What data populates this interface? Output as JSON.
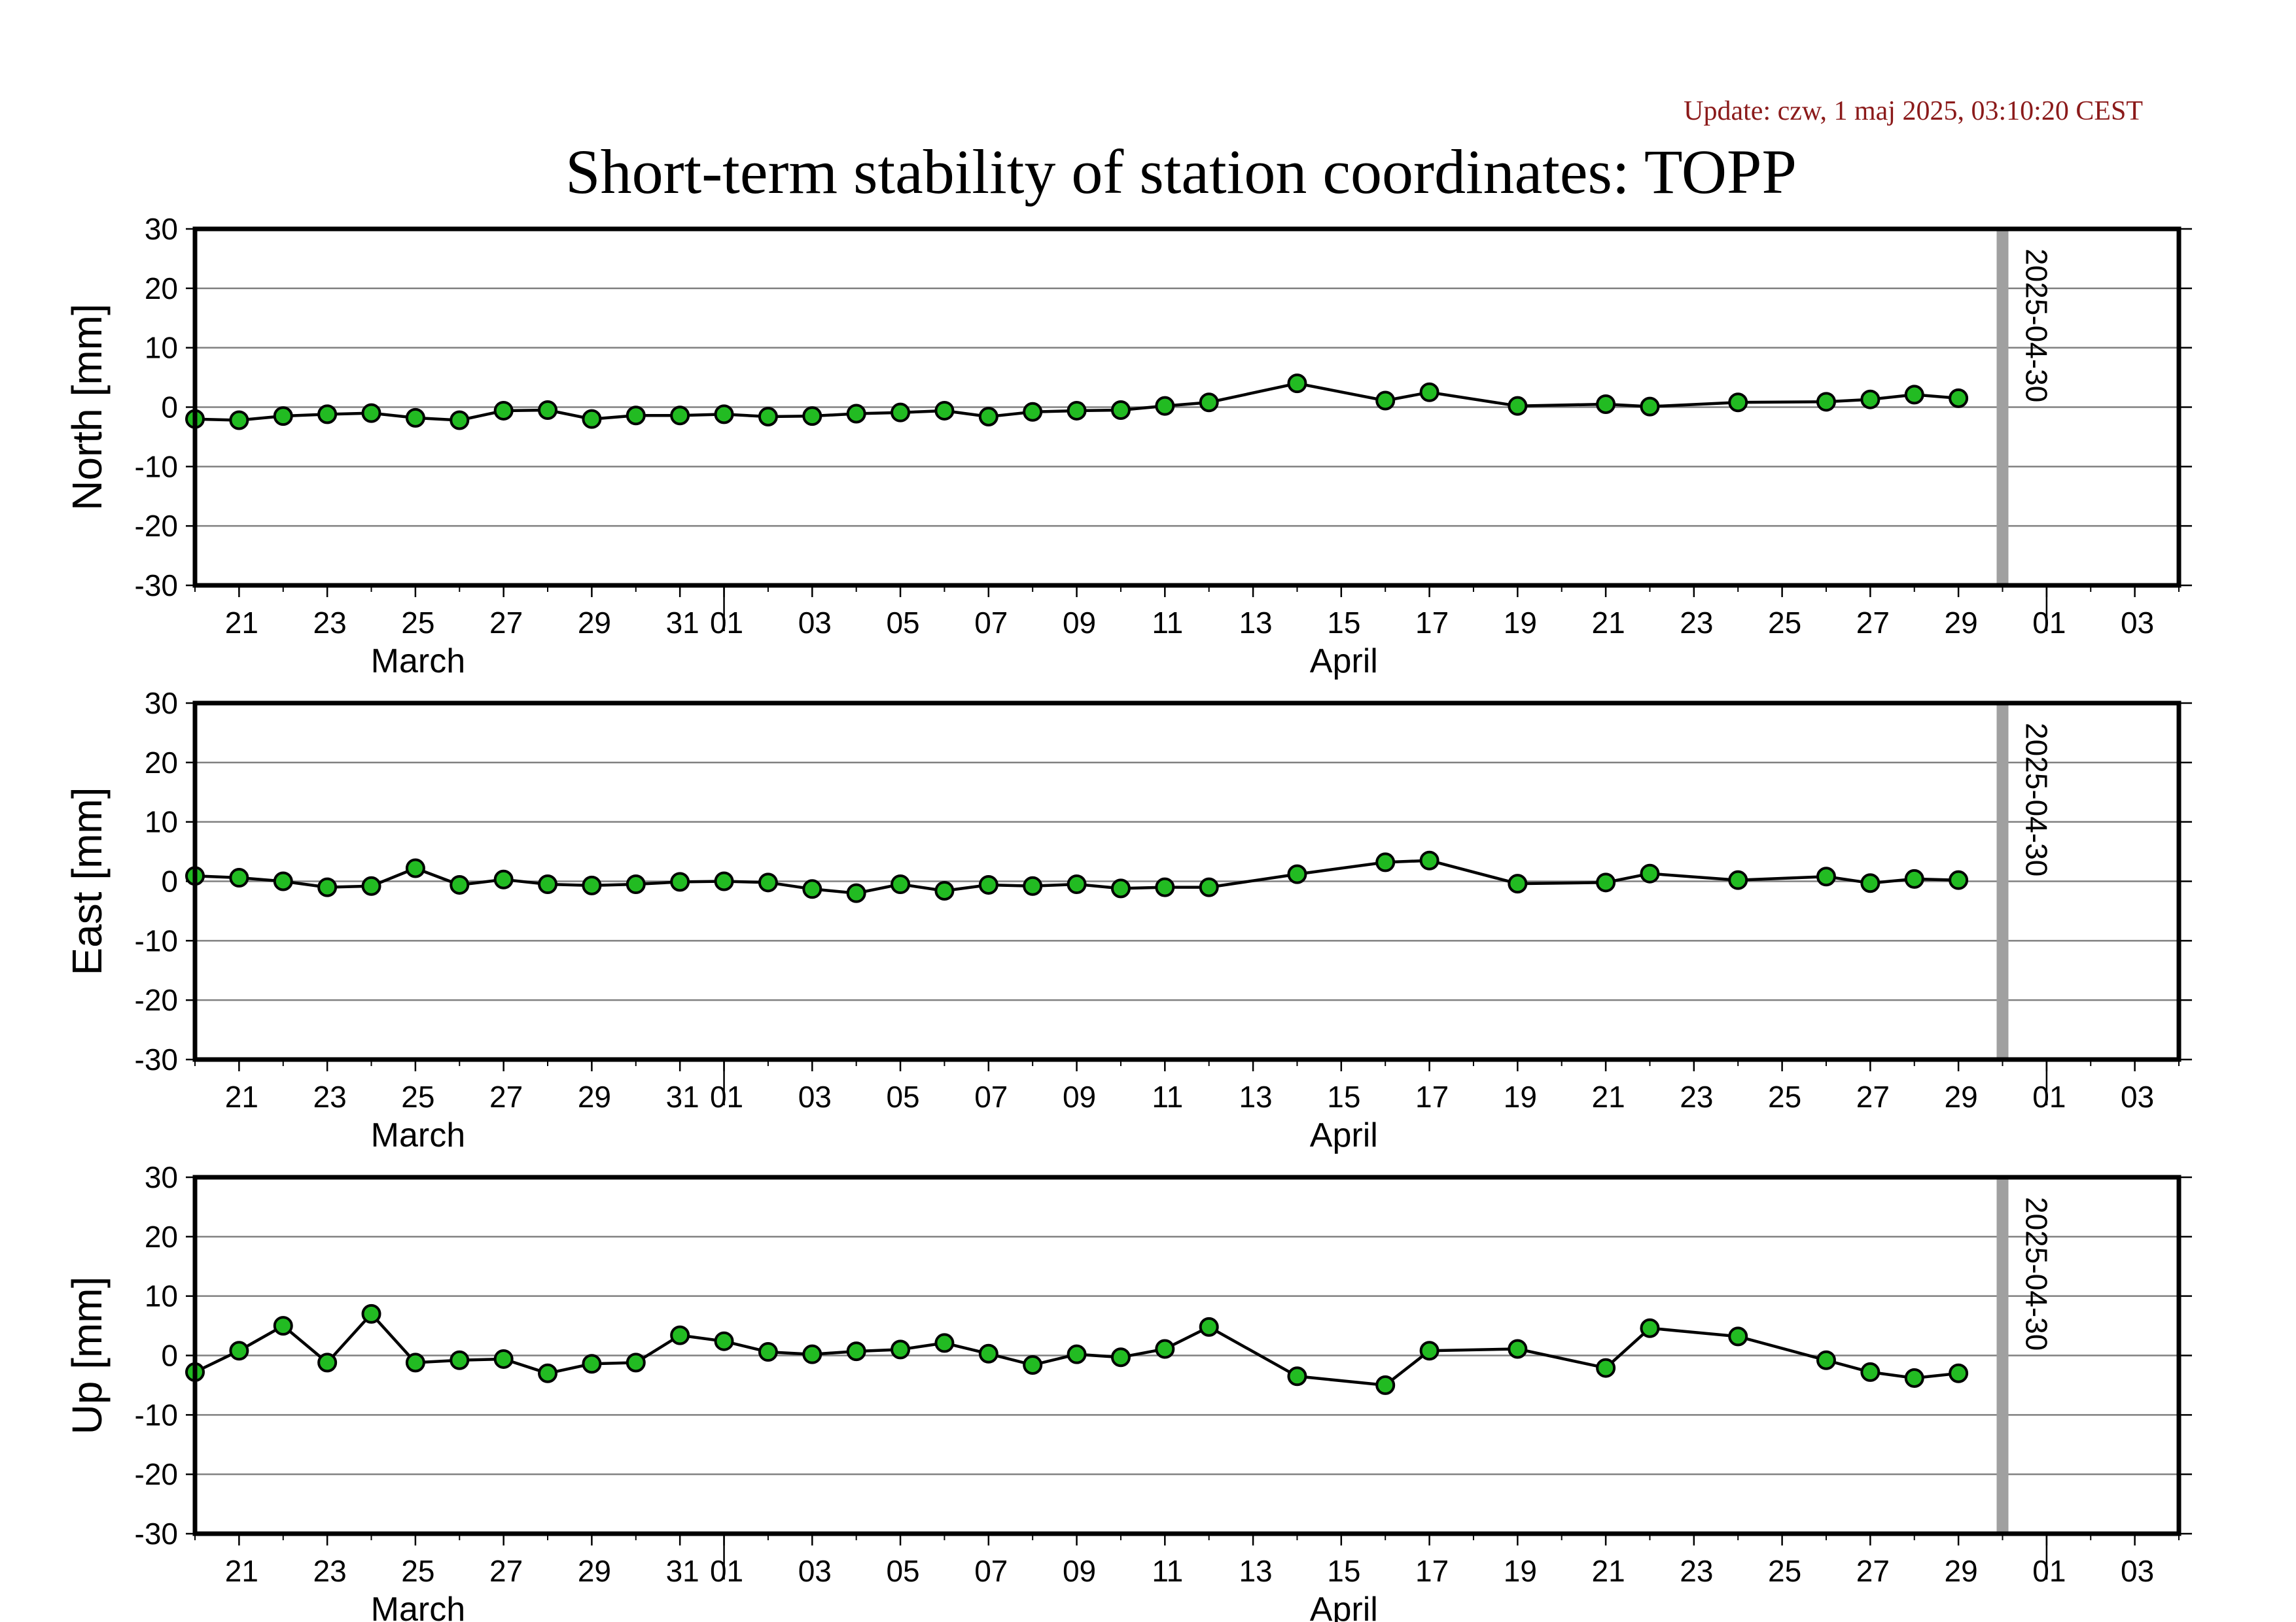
{
  "header": {
    "update": "Update: czw, 1 maj 2025, 03:10:20 CEST",
    "title": "Short-term stability of station coordinates: TOPP"
  },
  "colors": {
    "marker_fill": "#22bb22",
    "marker_stroke": "#000000",
    "line": "#000000",
    "grid": "#808080",
    "today_bar": "#a0a0a0",
    "update_text": "#8b1a1a"
  },
  "chart_data": [
    {
      "type": "line",
      "ylabel": "North [mm]",
      "ylim": [
        -30,
        30
      ],
      "yticks": [
        30,
        20,
        10,
        0,
        -10,
        -20,
        -30
      ],
      "xlim": [
        "2025-03-20",
        "2025-05-04"
      ],
      "xtick_labels": [
        {
          "date": "2025-03-21",
          "label": "21"
        },
        {
          "date": "2025-03-23",
          "label": "23"
        },
        {
          "date": "2025-03-25",
          "label": "25"
        },
        {
          "date": "2025-03-27",
          "label": "27"
        },
        {
          "date": "2025-03-29",
          "label": "29"
        },
        {
          "date": "2025-03-31",
          "label": "31"
        },
        {
          "date": "2025-04-01",
          "label": "01"
        },
        {
          "date": "2025-04-03",
          "label": "03"
        },
        {
          "date": "2025-04-05",
          "label": "05"
        },
        {
          "date": "2025-04-07",
          "label": "07"
        },
        {
          "date": "2025-04-09",
          "label": "09"
        },
        {
          "date": "2025-04-11",
          "label": "11"
        },
        {
          "date": "2025-04-13",
          "label": "13"
        },
        {
          "date": "2025-04-15",
          "label": "15"
        },
        {
          "date": "2025-04-17",
          "label": "17"
        },
        {
          "date": "2025-04-19",
          "label": "19"
        },
        {
          "date": "2025-04-21",
          "label": "21"
        },
        {
          "date": "2025-04-23",
          "label": "23"
        },
        {
          "date": "2025-04-25",
          "label": "25"
        },
        {
          "date": "2025-04-27",
          "label": "27"
        },
        {
          "date": "2025-04-29",
          "label": "29"
        },
        {
          "date": "2025-05-01",
          "label": "01"
        },
        {
          "date": "2025-05-03",
          "label": "03"
        }
      ],
      "month_labels": [
        {
          "date": "2025-03-25",
          "label": "March"
        },
        {
          "date": "2025-04-15",
          "label": "April"
        }
      ],
      "month_boundaries": [
        "2025-04-01",
        "2025-05-01"
      ],
      "marker": {
        "date": "2025-04-30",
        "label": "2025-04-30"
      },
      "grid": true,
      "points": [
        {
          "x": "2025-03-20",
          "y": -2.0
        },
        {
          "x": "2025-03-21",
          "y": -2.2
        },
        {
          "x": "2025-03-22",
          "y": -1.5
        },
        {
          "x": "2025-03-23",
          "y": -1.2
        },
        {
          "x": "2025-03-24",
          "y": -1.0
        },
        {
          "x": "2025-03-25",
          "y": -1.8
        },
        {
          "x": "2025-03-26",
          "y": -2.2
        },
        {
          "x": "2025-03-27",
          "y": -0.6
        },
        {
          "x": "2025-03-28",
          "y": -0.5
        },
        {
          "x": "2025-03-29",
          "y": -2.0
        },
        {
          "x": "2025-03-30",
          "y": -1.4
        },
        {
          "x": "2025-03-31",
          "y": -1.4
        },
        {
          "x": "2025-04-01",
          "y": -1.2
        },
        {
          "x": "2025-04-02",
          "y": -1.6
        },
        {
          "x": "2025-04-03",
          "y": -1.5
        },
        {
          "x": "2025-04-04",
          "y": -1.1
        },
        {
          "x": "2025-04-05",
          "y": -0.9
        },
        {
          "x": "2025-04-06",
          "y": -0.6
        },
        {
          "x": "2025-04-07",
          "y": -1.6
        },
        {
          "x": "2025-04-08",
          "y": -0.8
        },
        {
          "x": "2025-04-09",
          "y": -0.6
        },
        {
          "x": "2025-04-10",
          "y": -0.5
        },
        {
          "x": "2025-04-11",
          "y": 0.2
        },
        {
          "x": "2025-04-12",
          "y": 0.8
        },
        {
          "x": "2025-04-14",
          "y": 4.0
        },
        {
          "x": "2025-04-16",
          "y": 1.1
        },
        {
          "x": "2025-04-17",
          "y": 2.5
        },
        {
          "x": "2025-04-19",
          "y": 0.2
        },
        {
          "x": "2025-04-21",
          "y": 0.5
        },
        {
          "x": "2025-04-22",
          "y": 0.1
        },
        {
          "x": "2025-04-24",
          "y": 0.8
        },
        {
          "x": "2025-04-26",
          "y": 0.9
        },
        {
          "x": "2025-04-27",
          "y": 1.3
        },
        {
          "x": "2025-04-28",
          "y": 2.1
        },
        {
          "x": "2025-04-29",
          "y": 1.5
        }
      ]
    },
    {
      "type": "line",
      "ylabel": "East [mm]",
      "ylim": [
        -30,
        30
      ],
      "yticks": [
        30,
        20,
        10,
        0,
        -10,
        -20,
        -30
      ],
      "xlim": [
        "2025-03-20",
        "2025-05-04"
      ],
      "xtick_labels": [
        {
          "date": "2025-03-21",
          "label": "21"
        },
        {
          "date": "2025-03-23",
          "label": "23"
        },
        {
          "date": "2025-03-25",
          "label": "25"
        },
        {
          "date": "2025-03-27",
          "label": "27"
        },
        {
          "date": "2025-03-29",
          "label": "29"
        },
        {
          "date": "2025-03-31",
          "label": "31"
        },
        {
          "date": "2025-04-01",
          "label": "01"
        },
        {
          "date": "2025-04-03",
          "label": "03"
        },
        {
          "date": "2025-04-05",
          "label": "05"
        },
        {
          "date": "2025-04-07",
          "label": "07"
        },
        {
          "date": "2025-04-09",
          "label": "09"
        },
        {
          "date": "2025-04-11",
          "label": "11"
        },
        {
          "date": "2025-04-13",
          "label": "13"
        },
        {
          "date": "2025-04-15",
          "label": "15"
        },
        {
          "date": "2025-04-17",
          "label": "17"
        },
        {
          "date": "2025-04-19",
          "label": "19"
        },
        {
          "date": "2025-04-21",
          "label": "21"
        },
        {
          "date": "2025-04-23",
          "label": "23"
        },
        {
          "date": "2025-04-25",
          "label": "25"
        },
        {
          "date": "2025-04-27",
          "label": "27"
        },
        {
          "date": "2025-04-29",
          "label": "29"
        },
        {
          "date": "2025-05-01",
          "label": "01"
        },
        {
          "date": "2025-05-03",
          "label": "03"
        }
      ],
      "month_labels": [
        {
          "date": "2025-03-25",
          "label": "March"
        },
        {
          "date": "2025-04-15",
          "label": "April"
        }
      ],
      "month_boundaries": [
        "2025-04-01",
        "2025-05-01"
      ],
      "marker": {
        "date": "2025-04-30",
        "label": "2025-04-30"
      },
      "grid": true,
      "points": [
        {
          "x": "2025-03-20",
          "y": 0.9
        },
        {
          "x": "2025-03-21",
          "y": 0.6
        },
        {
          "x": "2025-03-22",
          "y": 0.0
        },
        {
          "x": "2025-03-23",
          "y": -1.0
        },
        {
          "x": "2025-03-24",
          "y": -0.8
        },
        {
          "x": "2025-03-25",
          "y": 2.2
        },
        {
          "x": "2025-03-26",
          "y": -0.6
        },
        {
          "x": "2025-03-27",
          "y": 0.3
        },
        {
          "x": "2025-03-28",
          "y": -0.5
        },
        {
          "x": "2025-03-29",
          "y": -0.7
        },
        {
          "x": "2025-03-30",
          "y": -0.5
        },
        {
          "x": "2025-03-31",
          "y": -0.1
        },
        {
          "x": "2025-04-01",
          "y": 0.0
        },
        {
          "x": "2025-04-02",
          "y": -0.2
        },
        {
          "x": "2025-04-03",
          "y": -1.3
        },
        {
          "x": "2025-04-04",
          "y": -2.0
        },
        {
          "x": "2025-04-05",
          "y": -0.5
        },
        {
          "x": "2025-04-06",
          "y": -1.6
        },
        {
          "x": "2025-04-07",
          "y": -0.6
        },
        {
          "x": "2025-04-08",
          "y": -0.8
        },
        {
          "x": "2025-04-09",
          "y": -0.5
        },
        {
          "x": "2025-04-10",
          "y": -1.2
        },
        {
          "x": "2025-04-11",
          "y": -1.0
        },
        {
          "x": "2025-04-12",
          "y": -1.0
        },
        {
          "x": "2025-04-14",
          "y": 1.2
        },
        {
          "x": "2025-04-16",
          "y": 3.2
        },
        {
          "x": "2025-04-17",
          "y": 3.5
        },
        {
          "x": "2025-04-19",
          "y": -0.4
        },
        {
          "x": "2025-04-21",
          "y": -0.2
        },
        {
          "x": "2025-04-22",
          "y": 1.3
        },
        {
          "x": "2025-04-24",
          "y": 0.2
        },
        {
          "x": "2025-04-26",
          "y": 0.8
        },
        {
          "x": "2025-04-27",
          "y": -0.3
        },
        {
          "x": "2025-04-28",
          "y": 0.4
        },
        {
          "x": "2025-04-29",
          "y": 0.2
        }
      ]
    },
    {
      "type": "line",
      "ylabel": "Up [mm]",
      "ylim": [
        -30,
        30
      ],
      "yticks": [
        30,
        20,
        10,
        0,
        -10,
        -20,
        -30
      ],
      "xlim": [
        "2025-03-20",
        "2025-05-04"
      ],
      "xtick_labels": [
        {
          "date": "2025-03-21",
          "label": "21"
        },
        {
          "date": "2025-03-23",
          "label": "23"
        },
        {
          "date": "2025-03-25",
          "label": "25"
        },
        {
          "date": "2025-03-27",
          "label": "27"
        },
        {
          "date": "2025-03-29",
          "label": "29"
        },
        {
          "date": "2025-03-31",
          "label": "31"
        },
        {
          "date": "2025-04-01",
          "label": "01"
        },
        {
          "date": "2025-04-03",
          "label": "03"
        },
        {
          "date": "2025-04-05",
          "label": "05"
        },
        {
          "date": "2025-04-07",
          "label": "07"
        },
        {
          "date": "2025-04-09",
          "label": "09"
        },
        {
          "date": "2025-04-11",
          "label": "11"
        },
        {
          "date": "2025-04-13",
          "label": "13"
        },
        {
          "date": "2025-04-15",
          "label": "15"
        },
        {
          "date": "2025-04-17",
          "label": "17"
        },
        {
          "date": "2025-04-19",
          "label": "19"
        },
        {
          "date": "2025-04-21",
          "label": "21"
        },
        {
          "date": "2025-04-23",
          "label": "23"
        },
        {
          "date": "2025-04-25",
          "label": "25"
        },
        {
          "date": "2025-04-27",
          "label": "27"
        },
        {
          "date": "2025-04-29",
          "label": "29"
        },
        {
          "date": "2025-05-01",
          "label": "01"
        },
        {
          "date": "2025-05-03",
          "label": "03"
        }
      ],
      "month_labels": [
        {
          "date": "2025-03-25",
          "label": "March"
        },
        {
          "date": "2025-04-15",
          "label": "April"
        }
      ],
      "month_boundaries": [
        "2025-04-01",
        "2025-05-01"
      ],
      "marker": {
        "date": "2025-04-30",
        "label": "2025-04-30"
      },
      "grid": true,
      "points": [
        {
          "x": "2025-03-20",
          "y": -2.8
        },
        {
          "x": "2025-03-21",
          "y": 0.8
        },
        {
          "x": "2025-03-22",
          "y": 5.0
        },
        {
          "x": "2025-03-23",
          "y": -1.2
        },
        {
          "x": "2025-03-24",
          "y": 7.0
        },
        {
          "x": "2025-03-25",
          "y": -1.2
        },
        {
          "x": "2025-03-26",
          "y": -0.8
        },
        {
          "x": "2025-03-27",
          "y": -0.6
        },
        {
          "x": "2025-03-28",
          "y": -3.0
        },
        {
          "x": "2025-03-29",
          "y": -1.4
        },
        {
          "x": "2025-03-30",
          "y": -1.2
        },
        {
          "x": "2025-03-31",
          "y": 3.4
        },
        {
          "x": "2025-04-01",
          "y": 2.4
        },
        {
          "x": "2025-04-02",
          "y": 0.6
        },
        {
          "x": "2025-04-03",
          "y": 0.2
        },
        {
          "x": "2025-04-04",
          "y": 0.7
        },
        {
          "x": "2025-04-05",
          "y": 1.0
        },
        {
          "x": "2025-04-06",
          "y": 2.1
        },
        {
          "x": "2025-04-07",
          "y": 0.3
        },
        {
          "x": "2025-04-08",
          "y": -1.6
        },
        {
          "x": "2025-04-09",
          "y": 0.2
        },
        {
          "x": "2025-04-10",
          "y": -0.3
        },
        {
          "x": "2025-04-11",
          "y": 1.1
        },
        {
          "x": "2025-04-12",
          "y": 4.8
        },
        {
          "x": "2025-04-14",
          "y": -3.5
        },
        {
          "x": "2025-04-16",
          "y": -5.0
        },
        {
          "x": "2025-04-17",
          "y": 0.8
        },
        {
          "x": "2025-04-19",
          "y": 1.1
        },
        {
          "x": "2025-04-21",
          "y": -2.1
        },
        {
          "x": "2025-04-22",
          "y": 4.6
        },
        {
          "x": "2025-04-24",
          "y": 3.2
        },
        {
          "x": "2025-04-26",
          "y": -0.8
        },
        {
          "x": "2025-04-27",
          "y": -2.8
        },
        {
          "x": "2025-04-28",
          "y": -3.8
        },
        {
          "x": "2025-04-29",
          "y": -3.0
        }
      ]
    }
  ]
}
